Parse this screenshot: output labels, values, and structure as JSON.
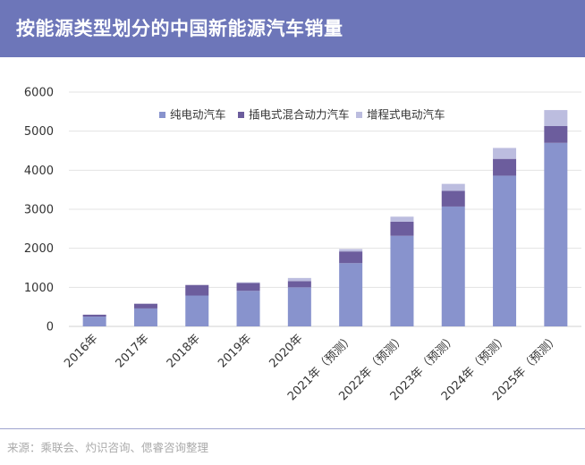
{
  "title": "按能源类型划分的中国新能源汽车销量",
  "source": "来源：乘联会、灼识咨询、偲睿咨询整理",
  "colors": {
    "header_bg": "#6d76b9",
    "bev": "#8893cd",
    "phev": "#6c5d9d",
    "erev": "#bcbddf",
    "footer_line": "#9ea4cf"
  },
  "chart_data": {
    "type": "bar",
    "stacked": true,
    "categories": [
      "2016年",
      "2017年",
      "2018年",
      "2019年",
      "2020年",
      "2021年（预测）",
      "2022年（预测）",
      "2023年（预测）",
      "2024年（预测）",
      "2025年（预测）"
    ],
    "series": [
      {
        "name": "纯电动汽车",
        "color": "#8893cd",
        "values": [
          250,
          460,
          790,
          910,
          1000,
          1620,
          2320,
          3070,
          3860,
          4700
        ]
      },
      {
        "name": "插电式混合动力汽车",
        "color": "#6c5d9d",
        "values": [
          50,
          120,
          270,
          200,
          160,
          300,
          360,
          400,
          430,
          430
        ]
      },
      {
        "name": "增程式电动汽车",
        "color": "#bcbddf",
        "values": [
          0,
          0,
          0,
          20,
          80,
          60,
          130,
          180,
          280,
          410
        ]
      }
    ],
    "y_ticks": [
      0,
      1000,
      2000,
      3000,
      4000,
      5000,
      6000
    ],
    "ylim": [
      0,
      6000
    ],
    "grid": true,
    "legend_position": "top"
  }
}
